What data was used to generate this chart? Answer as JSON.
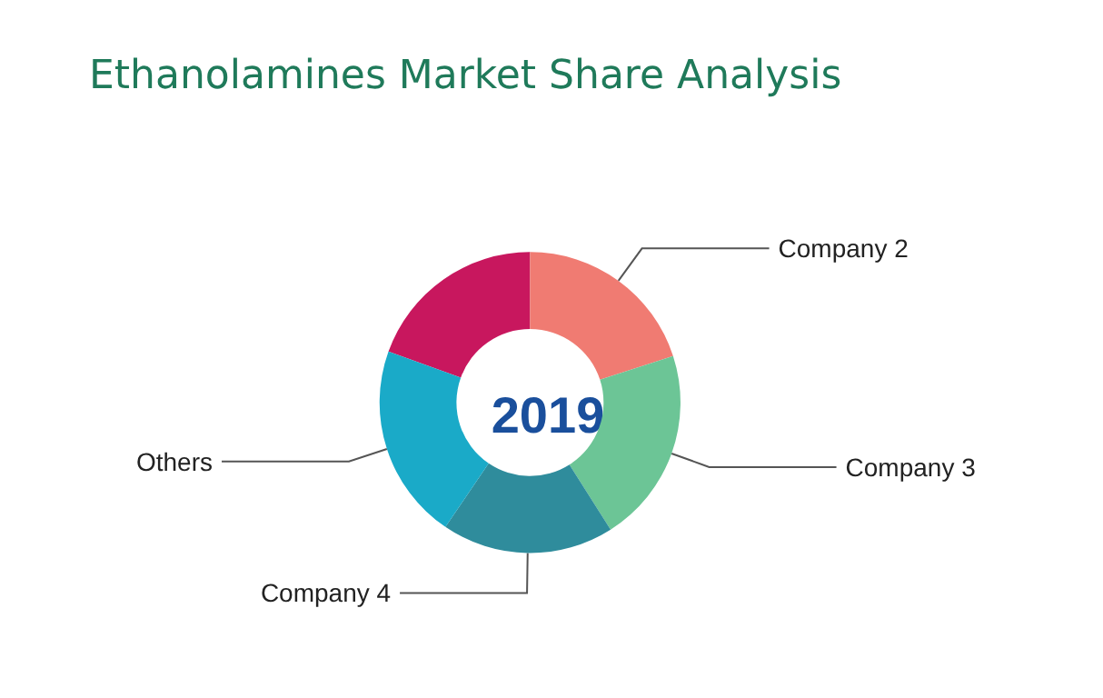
{
  "chart_data": {
    "type": "donut",
    "title": "Ethanolamines Market Share Analysis",
    "categories": [
      null,
      "Company 2",
      "Company 3",
      "Company 4",
      "Others"
    ],
    "values": [
      19.5,
      20,
      21,
      18.5,
      21
    ],
    "colors": [
      "#c8175e",
      "#f07b72",
      "#6cc596",
      "#2f8c9c",
      "#1aaac8"
    ],
    "annotations": [
      "2019"
    ],
    "legend": false
  }
}
